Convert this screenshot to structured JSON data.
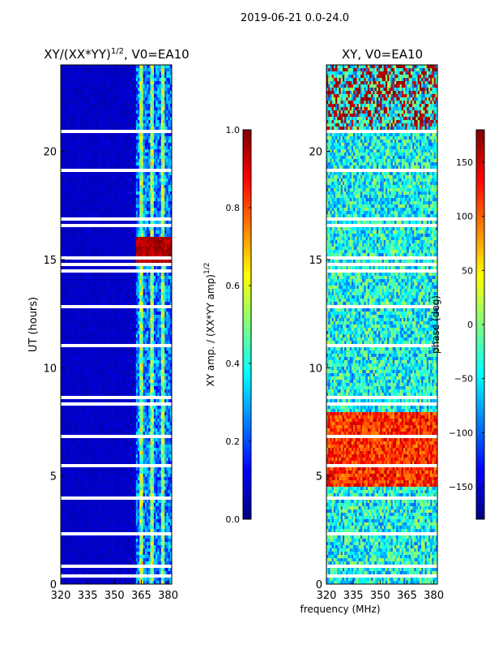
{
  "figure": {
    "suptitle": "2019-06-21 0.0-24.0",
    "xlabel": "frequency (MHz)"
  },
  "chart_data": [
    {
      "type": "heatmap",
      "title": "XY/(XX*YY)",
      "title_exponent": "1/2",
      "title_suffix": ", V0=EA10",
      "xlabel": "",
      "ylabel": "UT (hours)",
      "xlim": [
        320,
        382
      ],
      "ylim": [
        0,
        24
      ],
      "xticks": [
        320,
        335,
        350,
        365,
        380
      ],
      "yticks": [
        0,
        5,
        10,
        15,
        20
      ],
      "colorbar": {
        "label": "XY amp. / (XX*YY amp)",
        "label_exponent": "1/2",
        "range": [
          0.0,
          1.0
        ],
        "ticks": [
          "0.0",
          "0.2",
          "0.4",
          "0.6",
          "0.8",
          "1.0"
        ],
        "tick_values": [
          0.0,
          0.2,
          0.4,
          0.6,
          0.8,
          1.0
        ]
      },
      "features": {
        "background_value": 0.05,
        "active_band_mhz": [
          362,
          382
        ],
        "bright_channels_mhz": [
          365,
          371,
          377
        ],
        "strong_event_ut": [
          14.8,
          16.0
        ],
        "strong_event_value": 0.9
      }
    },
    {
      "type": "heatmap",
      "title": "XY, V0=EA10",
      "xlabel": "",
      "ylabel": "",
      "xlim": [
        320,
        382
      ],
      "ylim": [
        0,
        24
      ],
      "xticks": [
        320,
        335,
        350,
        365,
        380
      ],
      "yticks": [
        0,
        5,
        10,
        15,
        20
      ],
      "colorbar": {
        "label": "phase (deg)",
        "range": [
          -180,
          180
        ],
        "ticks": [
          "−150",
          "−100",
          "−50",
          "0",
          "50",
          "100",
          "150"
        ],
        "tick_values": [
          -150,
          -100,
          -50,
          0,
          50,
          100,
          150
        ]
      },
      "features": {
        "dominant_phase_deg": -40,
        "warm_band_ut": [
          4.5,
          8.0
        ],
        "warm_band_phase_deg": 120
      }
    }
  ],
  "colors": {
    "jet_low": "#00007f",
    "jet_high": "#7f0000",
    "gap": "#ffffff"
  }
}
